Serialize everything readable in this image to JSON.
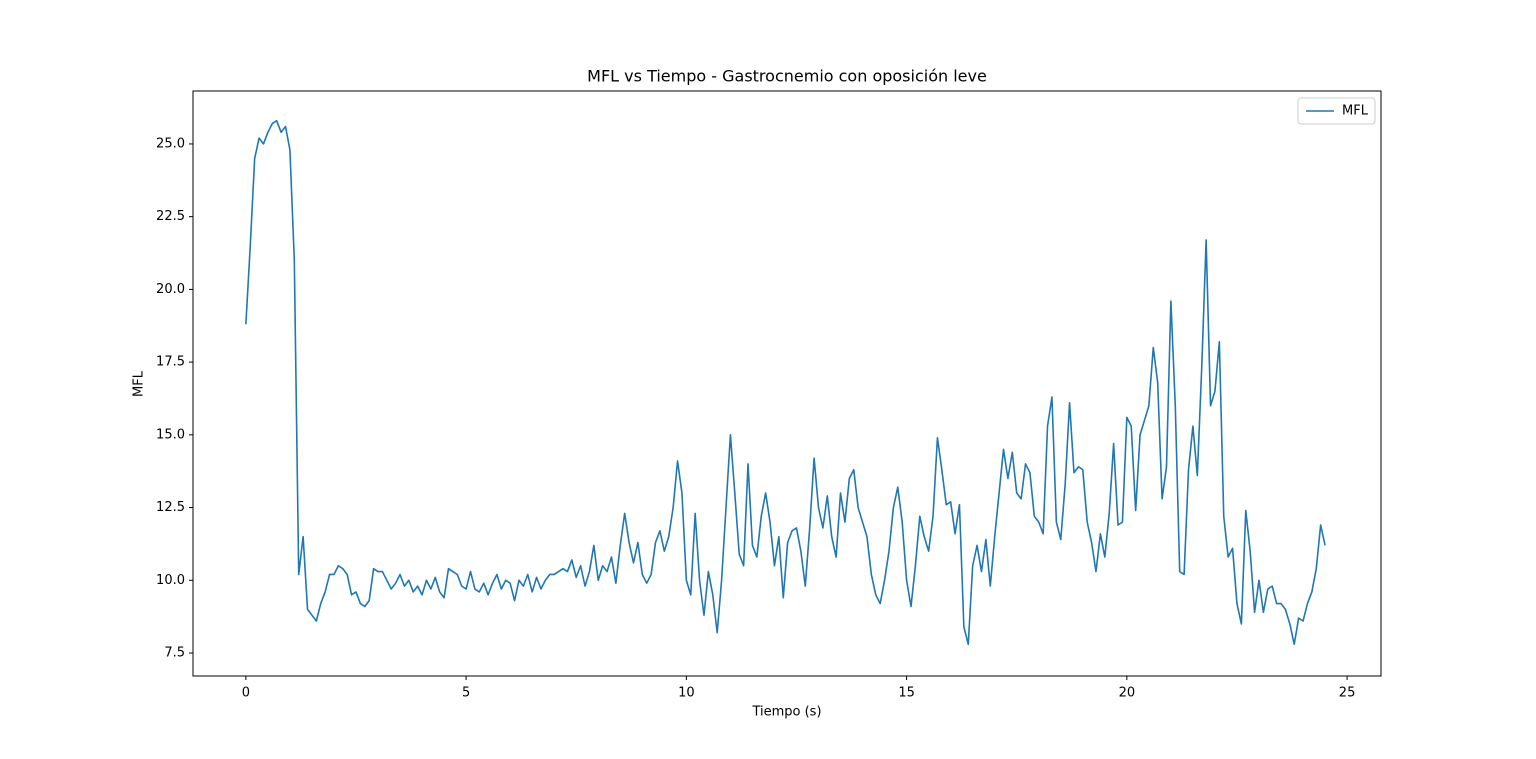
{
  "chart_data": {
    "type": "line",
    "title": "MFL vs Tiempo - Gastrocnemio con oposición leve",
    "xlabel": "Tiempo (s)",
    "ylabel": "MFL",
    "x": [
      0,
      0.1,
      0.2,
      0.3,
      0.4,
      0.5,
      0.6,
      0.7,
      0.8,
      0.9,
      1,
      1.1,
      1.2,
      1.3,
      1.4,
      1.5,
      1.6,
      1.7,
      1.8,
      1.9,
      2,
      2.1,
      2.2,
      2.3,
      2.4,
      2.5,
      2.6,
      2.7,
      2.8,
      2.9,
      3,
      3.1,
      3.2,
      3.3,
      3.4,
      3.5,
      3.6,
      3.7,
      3.8,
      3.9,
      4,
      4.1,
      4.2,
      4.3,
      4.4,
      4.5,
      4.6,
      4.7,
      4.8,
      4.9,
      5,
      5.1,
      5.2,
      5.3,
      5.4,
      5.5,
      5.6,
      5.7,
      5.8,
      5.9,
      6,
      6.1,
      6.2,
      6.3,
      6.4,
      6.5,
      6.6,
      6.7,
      6.8,
      6.9,
      7,
      7.1,
      7.2,
      7.3,
      7.4,
      7.5,
      7.6,
      7.7,
      7.8,
      7.9,
      8,
      8.1,
      8.2,
      8.3,
      8.4,
      8.5,
      8.6,
      8.7,
      8.8,
      8.9,
      9,
      9.1,
      9.2,
      9.3,
      9.4,
      9.5,
      9.6,
      9.7,
      9.8,
      9.9,
      10,
      10.1,
      10.2,
      10.3,
      10.4,
      10.5,
      10.6,
      10.7,
      10.8,
      10.9,
      11,
      11.1,
      11.2,
      11.3,
      11.4,
      11.5,
      11.6,
      11.7,
      11.8,
      11.9,
      12,
      12.1,
      12.2,
      12.3,
      12.4,
      12.5,
      12.6,
      12.7,
      12.8,
      12.9,
      13,
      13.1,
      13.2,
      13.3,
      13.4,
      13.5,
      13.6,
      13.7,
      13.8,
      13.9,
      14,
      14.1,
      14.2,
      14.3,
      14.4,
      14.5,
      14.6,
      14.7,
      14.8,
      14.9,
      15,
      15.1,
      15.2,
      15.3,
      15.4,
      15.5,
      15.6,
      15.7,
      15.8,
      15.9,
      16,
      16.1,
      16.2,
      16.3,
      16.4,
      16.5,
      16.6,
      16.7,
      16.8,
      16.9,
      17,
      17.1,
      17.2,
      17.3,
      17.4,
      17.5,
      17.6,
      17.7,
      17.8,
      17.9,
      18,
      18.1,
      18.2,
      18.3,
      18.4,
      18.5,
      18.6,
      18.7,
      18.8,
      18.9,
      19,
      19.1,
      19.2,
      19.3,
      19.4,
      19.5,
      19.6,
      19.7,
      19.8,
      19.9,
      20,
      20.1,
      20.2,
      20.3,
      20.4,
      20.5,
      20.6,
      20.7,
      20.8,
      20.9,
      21,
      21.1,
      21.2,
      21.3,
      21.4,
      21.5,
      21.6,
      21.7,
      21.8,
      21.9,
      22,
      22.1,
      22.2,
      22.3,
      22.4,
      22.5,
      22.6,
      22.7,
      22.8,
      22.9,
      23,
      23.1,
      23.2,
      23.3,
      23.4,
      23.5,
      23.6,
      23.7,
      23.8,
      23.9,
      24,
      24.1,
      24.2,
      24.3,
      24.4,
      24.5
    ],
    "series": [
      {
        "name": "MFL",
        "color": "#1f77b4",
        "values": [
          18.8,
          21.5,
          24.5,
          25.2,
          25.0,
          25.4,
          25.7,
          25.8,
          25.4,
          25.6,
          24.8,
          21.0,
          10.2,
          11.5,
          9.0,
          8.8,
          8.6,
          9.2,
          9.6,
          10.2,
          10.2,
          10.5,
          10.4,
          10.2,
          9.5,
          9.6,
          9.2,
          9.1,
          9.3,
          10.4,
          10.3,
          10.3,
          10.0,
          9.7,
          9.9,
          10.2,
          9.8,
          10.0,
          9.6,
          9.8,
          9.5,
          10.0,
          9.7,
          10.1,
          9.6,
          9.4,
          10.4,
          10.3,
          10.2,
          9.8,
          9.7,
          10.3,
          9.7,
          9.6,
          9.9,
          9.5,
          9.9,
          10.2,
          9.7,
          10.0,
          9.9,
          9.3,
          10.0,
          9.8,
          10.2,
          9.6,
          10.1,
          9.7,
          10.0,
          10.2,
          10.2,
          10.3,
          10.4,
          10.3,
          10.7,
          10.1,
          10.5,
          9.8,
          10.3,
          11.2,
          10.0,
          10.5,
          10.3,
          10.8,
          9.9,
          11.2,
          12.3,
          11.3,
          10.6,
          11.3,
          10.2,
          9.9,
          10.2,
          11.3,
          11.7,
          11.0,
          11.5,
          12.5,
          14.1,
          13.0,
          10.0,
          9.5,
          12.3,
          10.0,
          8.8,
          10.3,
          9.5,
          8.2,
          10.0,
          12.5,
          15.0,
          13.0,
          10.9,
          10.5,
          14.0,
          11.2,
          10.8,
          12.2,
          13.0,
          12.0,
          10.5,
          11.5,
          9.4,
          11.3,
          11.7,
          11.8,
          11.0,
          9.8,
          11.8,
          14.2,
          12.5,
          11.8,
          12.9,
          11.5,
          10.8,
          13.0,
          12.0,
          13.5,
          13.8,
          12.5,
          12.0,
          11.5,
          10.2,
          9.5,
          9.2,
          10.0,
          11.0,
          12.5,
          13.2,
          12.0,
          10.0,
          9.1,
          10.5,
          12.2,
          11.5,
          11.0,
          12.2,
          14.9,
          13.8,
          12.6,
          12.7,
          11.6,
          12.6,
          8.4,
          7.8,
          10.5,
          11.2,
          10.3,
          11.4,
          9.8,
          11.5,
          13.0,
          14.5,
          13.5,
          14.4,
          13.0,
          12.8,
          14.0,
          13.7,
          12.2,
          12.0,
          11.6,
          15.3,
          16.3,
          12.0,
          11.4,
          13.3,
          16.1,
          13.7,
          13.9,
          13.8,
          12.0,
          11.3,
          10.3,
          11.6,
          10.8,
          12.3,
          14.7,
          11.9,
          12.0,
          15.6,
          15.3,
          12.4,
          15.0,
          15.5,
          16.0,
          18.0,
          16.8,
          12.8,
          13.9,
          19.6,
          16.0,
          10.3,
          10.2,
          13.8,
          15.3,
          13.6,
          17.3,
          21.7,
          16.0,
          16.5,
          18.2,
          12.2,
          10.8,
          11.1,
          9.2,
          8.5,
          12.4,
          11.0,
          8.9,
          10.0,
          8.9,
          9.7,
          9.8,
          9.2,
          9.2,
          9.0,
          8.5,
          7.8,
          8.7,
          8.6,
          9.2,
          9.6,
          10.4,
          11.9,
          11.2
        ]
      }
    ],
    "xlim": [
      -1.2,
      25.77
    ],
    "ylim": [
      6.71,
      26.82
    ],
    "xticks": [
      0,
      5,
      10,
      15,
      20,
      25
    ],
    "yticks": [
      7.5,
      {
        "value": 10,
        "label": "10.0"
      },
      12.5,
      {
        "value": 15,
        "label": "15.0"
      },
      17.5,
      {
        "value": 20,
        "label": "20.0"
      },
      22.5,
      {
        "value": 25,
        "label": "25.0"
      }
    ],
    "legend": "upper right"
  }
}
